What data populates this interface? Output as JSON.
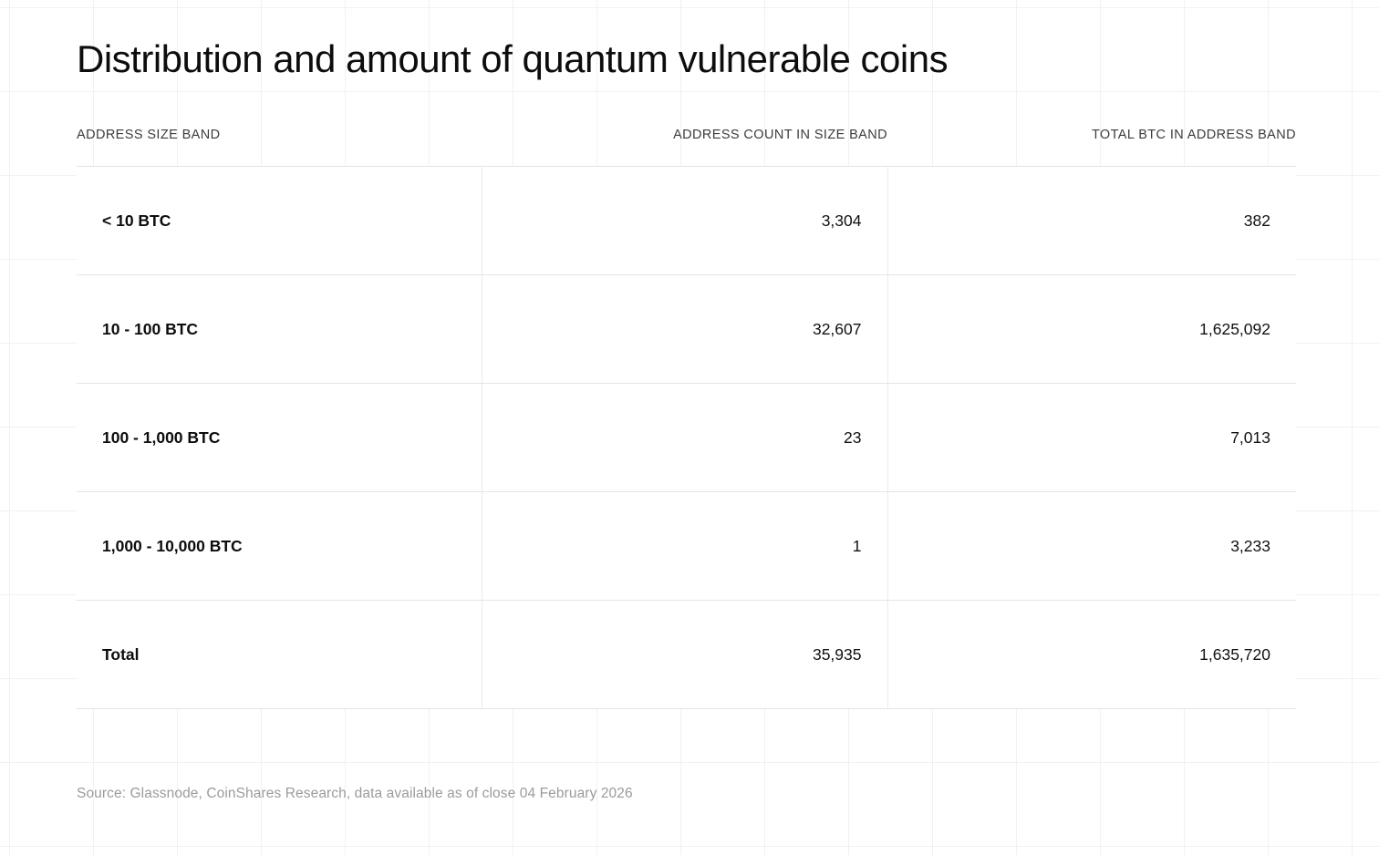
{
  "title": "Distribution and amount of quantum vulnerable coins",
  "table": {
    "columns": {
      "band": "ADDRESS SIZE BAND",
      "count": "ADDRESS COUNT IN SIZE BAND",
      "btc": "TOTAL BTC IN ADDRESS BAND"
    },
    "rows": [
      {
        "band": "< 10 BTC",
        "count": "3,304",
        "btc": "382"
      },
      {
        "band": "10 - 100 BTC",
        "count": "32,607",
        "btc": "1,625,092"
      },
      {
        "band": "100 - 1,000 BTC",
        "count": "23",
        "btc": "7,013"
      },
      {
        "band": "1,000 - 10,000 BTC",
        "count": "1",
        "btc": "3,233"
      },
      {
        "band": "Total",
        "count": "35,935",
        "btc": "1,635,720"
      }
    ]
  },
  "source": "Source: Glassnode, CoinShares Research, data available as of close 04 February 2026",
  "colors": {
    "background": "#ffffff",
    "grid_line": "#f3f1ef",
    "row_divider": "#e6e4e1",
    "header_text": "#3c3c3c",
    "body_text": "#111111",
    "source_text": "#9b9b9b"
  },
  "chart_data": {
    "type": "table",
    "title": "Distribution and amount of quantum vulnerable coins",
    "columns": [
      "ADDRESS SIZE BAND",
      "ADDRESS COUNT IN SIZE BAND",
      "TOTAL BTC IN ADDRESS BAND"
    ],
    "rows": [
      [
        "< 10 BTC",
        3304,
        382
      ],
      [
        "10 - 100 BTC",
        32607,
        1625092
      ],
      [
        "100 - 1,000 BTC",
        23,
        7013
      ],
      [
        "1,000 - 10,000 BTC",
        1,
        3233
      ],
      [
        "Total",
        35935,
        1635720
      ]
    ],
    "source": "Source: Glassnode, CoinShares Research, data available as of close 04 February 2026"
  }
}
